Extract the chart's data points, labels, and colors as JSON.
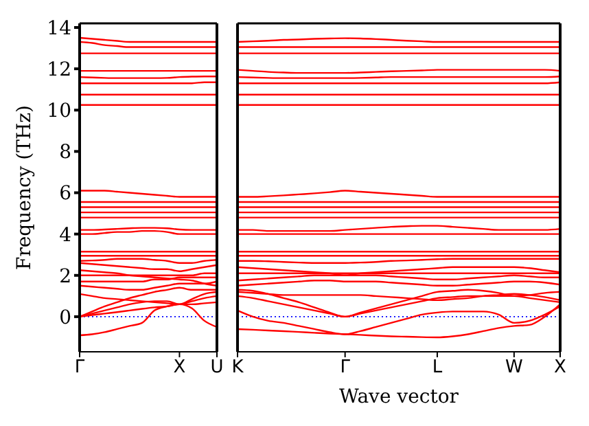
{
  "chart_data": [
    {
      "type": "line",
      "ylabel": "Frequency (THz)",
      "categories": [
        "Γ",
        null,
        null,
        null,
        null,
        null,
        null,
        null,
        "X",
        null,
        null,
        "U"
      ],
      "ylim": [
        -1.7,
        14.2
      ],
      "yticks": [
        0,
        2,
        4,
        6,
        8,
        10,
        12,
        14
      ],
      "ref_lines": [
        {
          "axis": "y",
          "value": 0,
          "color": "#0000ff",
          "line_style": "dotted"
        }
      ],
      "series": [
        {
          "color": "#ff0000",
          "values": [
            -0.9,
            -0.85,
            -0.75,
            -0.6,
            -0.45,
            -0.3,
            0.3,
            0.5,
            0.6,
            0.4,
            -0.2,
            -0.5
          ]
        },
        {
          "color": "#ff0000",
          "values": [
            0,
            0.08,
            0.15,
            0.22,
            0.3,
            0.38,
            0.45,
            0.5,
            0.6,
            0.6,
            0.65,
            0.7
          ]
        },
        {
          "color": "#ff0000",
          "values": [
            0,
            0.15,
            0.3,
            0.45,
            0.6,
            0.7,
            0.75,
            0.75,
            0.6,
            0.75,
            0.9,
            1.0
          ]
        },
        {
          "color": "#ff0000",
          "values": [
            0,
            0.25,
            0.5,
            0.7,
            0.9,
            1.05,
            1.2,
            1.3,
            1.4,
            1.3,
            1.3,
            1.3
          ]
        },
        {
          "color": "#ff0000",
          "values": [
            1.1,
            1.0,
            0.9,
            0.85,
            0.8,
            0.75,
            0.7,
            0.65,
            0.6,
            0.85,
            1.1,
            1.2
          ]
        },
        {
          "color": "#ff0000",
          "values": [
            1.5,
            1.45,
            1.4,
            1.35,
            1.3,
            1.3,
            1.4,
            1.5,
            1.6,
            1.6,
            1.6,
            1.7
          ]
        },
        {
          "color": "#ff0000",
          "values": [
            1.7,
            1.7,
            1.7,
            1.7,
            1.7,
            1.7,
            1.8,
            1.8,
            1.9,
            1.9,
            1.9,
            1.9
          ]
        },
        {
          "color": "#ff0000",
          "values": [
            2.0,
            2.0,
            2.0,
            2.0,
            2.0,
            2.0,
            2.0,
            2.0,
            2.0,
            2.0,
            2.1,
            2.1
          ]
        },
        {
          "color": "#ff0000",
          "values": [
            2.25,
            2.2,
            2.15,
            2.1,
            2.0,
            1.95,
            1.9,
            1.85,
            1.8,
            1.75,
            1.6,
            1.5
          ]
        },
        {
          "color": "#ff0000",
          "values": [
            2.6,
            2.55,
            2.5,
            2.45,
            2.4,
            2.35,
            2.3,
            2.3,
            2.2,
            2.3,
            2.4,
            2.5
          ]
        },
        {
          "color": "#ff0000",
          "values": [
            2.7,
            2.72,
            2.75,
            2.8,
            2.8,
            2.8,
            2.75,
            2.7,
            2.6,
            2.6,
            2.7,
            2.75
          ]
        },
        {
          "color": "#ff0000",
          "values": [
            2.95,
            2.95,
            2.95,
            2.95,
            2.95,
            2.95,
            2.95,
            2.95,
            2.95,
            2.95,
            2.95,
            2.95
          ]
        },
        {
          "color": "#ff0000",
          "values": [
            3.15,
            3.15,
            3.15,
            3.15,
            3.15,
            3.15,
            3.15,
            3.15,
            3.15,
            3.15,
            3.15,
            3.15
          ]
        },
        {
          "color": "#ff0000",
          "values": [
            4.0,
            4.0,
            4.05,
            4.1,
            4.1,
            4.15,
            4.15,
            4.1,
            4.0,
            4.0,
            4.0,
            4.0
          ]
        },
        {
          "color": "#ff0000",
          "values": [
            4.2,
            4.2,
            4.22,
            4.25,
            4.28,
            4.3,
            4.3,
            4.28,
            4.22,
            4.2,
            4.2,
            4.2
          ]
        },
        {
          "color": "#ff0000",
          "values": [
            4.8,
            4.8,
            4.8,
            4.8,
            4.8,
            4.8,
            4.8,
            4.8,
            4.8,
            4.8,
            4.8,
            4.8
          ]
        },
        {
          "color": "#ff0000",
          "values": [
            5.05,
            5.05,
            5.05,
            5.05,
            5.05,
            5.05,
            5.05,
            5.05,
            5.05,
            5.05,
            5.05,
            5.05
          ]
        },
        {
          "color": "#ff0000",
          "values": [
            5.3,
            5.3,
            5.3,
            5.3,
            5.3,
            5.3,
            5.3,
            5.3,
            5.3,
            5.3,
            5.3,
            5.3
          ]
        },
        {
          "color": "#ff0000",
          "values": [
            5.55,
            5.55,
            5.55,
            5.55,
            5.55,
            5.55,
            5.55,
            5.55,
            5.55,
            5.55,
            5.55,
            5.55
          ]
        },
        {
          "color": "#ff0000",
          "values": [
            6.1,
            6.1,
            6.1,
            6.05,
            6.0,
            5.95,
            5.9,
            5.85,
            5.8,
            5.8,
            5.8,
            5.8
          ]
        },
        {
          "color": "#ff0000",
          "values": [
            10.25,
            10.25,
            10.25,
            10.25,
            10.25,
            10.25,
            10.25,
            10.25,
            10.25,
            10.25,
            10.25,
            10.25
          ]
        },
        {
          "color": "#ff0000",
          "values": [
            10.75,
            10.75,
            10.75,
            10.75,
            10.75,
            10.75,
            10.75,
            10.75,
            10.75,
            10.75,
            10.75,
            10.75
          ]
        },
        {
          "color": "#ff0000",
          "values": [
            11.3,
            11.3,
            11.3,
            11.3,
            11.3,
            11.3,
            11.3,
            11.3,
            11.3,
            11.3,
            11.35,
            11.35
          ]
        },
        {
          "color": "#ff0000",
          "values": [
            11.6,
            11.58,
            11.56,
            11.55,
            11.55,
            11.55,
            11.55,
            11.56,
            11.6,
            11.62,
            11.63,
            11.63
          ]
        },
        {
          "color": "#ff0000",
          "values": [
            11.9,
            11.9,
            11.9,
            11.9,
            11.9,
            11.9,
            11.9,
            11.9,
            11.9,
            11.9,
            11.9,
            11.9
          ]
        },
        {
          "color": "#ff0000",
          "values": [
            12.75,
            12.75,
            12.75,
            12.75,
            12.75,
            12.75,
            12.75,
            12.75,
            12.75,
            12.75,
            12.75,
            12.75
          ]
        },
        {
          "color": "#ff0000",
          "values": [
            13.5,
            13.45,
            13.4,
            13.35,
            13.3,
            13.3,
            13.3,
            13.3,
            13.3,
            13.3,
            13.3,
            13.3
          ]
        },
        {
          "color": "#ff0000",
          "values": [
            13.3,
            13.25,
            13.15,
            13.1,
            13.05,
            13.05,
            13.05,
            13.05,
            13.05,
            13.05,
            13.05,
            13.05
          ]
        }
      ]
    },
    {
      "type": "line",
      "xlabel": "Wave vector",
      "tick_labels": "x",
      "categories": [
        "K",
        null,
        null,
        null,
        null,
        null,
        null,
        "Γ",
        null,
        null,
        null,
        null,
        null,
        "L",
        null,
        null,
        null,
        null,
        "W",
        null,
        null,
        "X"
      ],
      "ylim": [
        -1.7,
        14.2
      ],
      "yticks": [
        0,
        2,
        4,
        6,
        8,
        10,
        12,
        14
      ],
      "ref_lines": [
        {
          "axis": "y",
          "value": 0,
          "color": "#0000ff",
          "line_style": "dotted"
        }
      ],
      "series": [
        {
          "color": "#ff0000",
          "values": [
            -0.6,
            -0.63,
            -0.67,
            -0.7,
            -0.74,
            -0.78,
            -0.82,
            -0.85,
            -0.88,
            -0.92,
            -0.95,
            -0.97,
            -0.99,
            -1.0,
            -0.95,
            -0.85,
            -0.7,
            -0.55,
            -0.45,
            -0.4,
            0.0,
            0.6
          ]
        },
        {
          "color": "#ff0000",
          "values": [
            0.3,
            0.0,
            -0.2,
            -0.3,
            -0.45,
            -0.6,
            -0.75,
            -0.85,
            -0.7,
            -0.5,
            -0.3,
            -0.1,
            0.1,
            0.2,
            0.25,
            0.25,
            0.25,
            0.1,
            -0.3,
            -0.2,
            0.1,
            0.5
          ]
        },
        {
          "color": "#ff0000",
          "values": [
            1.2,
            1.15,
            1.1,
            1.05,
            1.05,
            1.05,
            1.05,
            1.05,
            1.05,
            1.0,
            0.95,
            0.9,
            0.85,
            0.8,
            0.85,
            0.9,
            1.0,
            1.05,
            1.1,
            1.05,
            0.95,
            0.8
          ]
        },
        {
          "color": "#ff0000",
          "values": [
            1.0,
            0.9,
            0.75,
            0.6,
            0.45,
            0.3,
            0.15,
            0,
            0.15,
            0.3,
            0.45,
            0.6,
            0.75,
            0.9,
            0.95,
            1.0,
            1.0,
            1.0,
            1.0,
            0.9,
            0.8,
            0.7
          ]
        },
        {
          "color": "#ff0000",
          "values": [
            1.3,
            1.25,
            1.1,
            0.9,
            0.7,
            0.45,
            0.2,
            0,
            0.2,
            0.4,
            0.6,
            0.8,
            1.0,
            1.2,
            1.25,
            1.3,
            1.25,
            1.15,
            1.0,
            1.05,
            1.15,
            1.2
          ]
        },
        {
          "color": "#ff0000",
          "values": [
            1.5,
            1.55,
            1.6,
            1.65,
            1.7,
            1.75,
            1.75,
            1.7,
            1.7,
            1.7,
            1.65,
            1.6,
            1.55,
            1.5,
            1.5,
            1.55,
            1.6,
            1.65,
            1.7,
            1.7,
            1.65,
            1.55
          ]
        },
        {
          "color": "#ff0000",
          "values": [
            1.75,
            1.8,
            1.85,
            1.9,
            1.95,
            2.0,
            2.0,
            2.0,
            2.0,
            2.0,
            1.95,
            1.9,
            1.85,
            1.8,
            1.8,
            1.85,
            1.9,
            1.95,
            2.0,
            1.95,
            1.9,
            1.9
          ]
        },
        {
          "color": "#ff0000",
          "values": [
            2.1,
            2.1,
            2.1,
            2.1,
            2.1,
            2.1,
            2.1,
            2.1,
            2.1,
            2.1,
            2.1,
            2.1,
            2.1,
            2.1,
            2.1,
            2.1,
            2.1,
            2.1,
            2.1,
            2.1,
            2.1,
            2.1
          ]
        },
        {
          "color": "#ff0000",
          "values": [
            2.4,
            2.35,
            2.3,
            2.25,
            2.2,
            2.15,
            2.1,
            2.0,
            2.1,
            2.15,
            2.2,
            2.25,
            2.3,
            2.35,
            2.4,
            2.4,
            2.4,
            2.4,
            2.4,
            2.35,
            2.25,
            2.15
          ]
        },
        {
          "color": "#ff0000",
          "values": [
            2.7,
            2.7,
            2.68,
            2.65,
            2.62,
            2.6,
            2.6,
            2.6,
            2.62,
            2.65,
            2.7,
            2.72,
            2.75,
            2.78,
            2.8,
            2.8,
            2.8,
            2.8,
            2.8,
            2.8,
            2.8,
            2.8
          ]
        },
        {
          "color": "#ff0000",
          "values": [
            2.95,
            2.95,
            2.95,
            2.95,
            2.95,
            2.95,
            2.95,
            2.95,
            2.95,
            2.95,
            2.95,
            2.95,
            2.95,
            2.95,
            2.95,
            2.95,
            2.95,
            2.95,
            2.95,
            2.95,
            2.95,
            2.95
          ]
        },
        {
          "color": "#ff0000",
          "values": [
            3.15,
            3.15,
            3.15,
            3.15,
            3.15,
            3.15,
            3.15,
            3.15,
            3.15,
            3.15,
            3.15,
            3.15,
            3.15,
            3.15,
            3.15,
            3.15,
            3.15,
            3.15,
            3.15,
            3.15,
            3.15,
            3.15
          ]
        },
        {
          "color": "#ff0000",
          "values": [
            4.0,
            4.0,
            4.0,
            4.0,
            4.0,
            4.0,
            4.0,
            4.0,
            4.0,
            4.0,
            4.0,
            4.0,
            4.0,
            4.0,
            4.0,
            4.0,
            4.0,
            4.0,
            4.0,
            4.0,
            4.0,
            4.0
          ]
        },
        {
          "color": "#ff0000",
          "values": [
            4.2,
            4.2,
            4.15,
            4.15,
            4.15,
            4.15,
            4.15,
            4.2,
            4.25,
            4.3,
            4.35,
            4.38,
            4.4,
            4.4,
            4.35,
            4.3,
            4.25,
            4.2,
            4.2,
            4.2,
            4.2,
            4.25
          ]
        },
        {
          "color": "#ff0000",
          "values": [
            4.8,
            4.8,
            4.8,
            4.8,
            4.8,
            4.8,
            4.8,
            4.8,
            4.8,
            4.8,
            4.8,
            4.8,
            4.8,
            4.8,
            4.8,
            4.8,
            4.8,
            4.8,
            4.8,
            4.8,
            4.8,
            4.8
          ]
        },
        {
          "color": "#ff0000",
          "values": [
            5.05,
            5.05,
            5.05,
            5.05,
            5.05,
            5.05,
            5.05,
            5.05,
            5.05,
            5.05,
            5.05,
            5.05,
            5.05,
            5.05,
            5.05,
            5.05,
            5.05,
            5.05,
            5.05,
            5.05,
            5.05,
            5.05
          ]
        },
        {
          "color": "#ff0000",
          "values": [
            5.3,
            5.3,
            5.3,
            5.3,
            5.3,
            5.3,
            5.3,
            5.3,
            5.3,
            5.3,
            5.3,
            5.3,
            5.3,
            5.3,
            5.3,
            5.3,
            5.3,
            5.3,
            5.3,
            5.3,
            5.3,
            5.3
          ]
        },
        {
          "color": "#ff0000",
          "values": [
            5.55,
            5.55,
            5.55,
            5.55,
            5.55,
            5.55,
            5.55,
            5.55,
            5.55,
            5.55,
            5.55,
            5.55,
            5.55,
            5.55,
            5.55,
            5.55,
            5.55,
            5.55,
            5.55,
            5.55,
            5.55,
            5.55
          ]
        },
        {
          "color": "#ff0000",
          "values": [
            5.8,
            5.8,
            5.83,
            5.87,
            5.92,
            5.97,
            6.03,
            6.1,
            6.05,
            6.0,
            5.95,
            5.9,
            5.85,
            5.8,
            5.8,
            5.8,
            5.8,
            5.8,
            5.8,
            5.8,
            5.8,
            5.8
          ]
        },
        {
          "color": "#ff0000",
          "values": [
            10.25,
            10.25,
            10.25,
            10.25,
            10.25,
            10.25,
            10.25,
            10.25,
            10.25,
            10.25,
            10.25,
            10.25,
            10.25,
            10.25,
            10.25,
            10.25,
            10.25,
            10.25,
            10.25,
            10.25,
            10.25,
            10.25
          ]
        },
        {
          "color": "#ff0000",
          "values": [
            10.75,
            10.75,
            10.75,
            10.75,
            10.75,
            10.75,
            10.75,
            10.75,
            10.75,
            10.75,
            10.75,
            10.75,
            10.75,
            10.75,
            10.75,
            10.75,
            10.75,
            10.75,
            10.75,
            10.75,
            10.75,
            10.75
          ]
        },
        {
          "color": "#ff0000",
          "values": [
            11.3,
            11.3,
            11.3,
            11.3,
            11.3,
            11.3,
            11.3,
            11.3,
            11.3,
            11.3,
            11.3,
            11.3,
            11.3,
            11.3,
            11.3,
            11.3,
            11.3,
            11.3,
            11.3,
            11.3,
            11.3,
            11.35
          ]
        },
        {
          "color": "#ff0000",
          "values": [
            11.6,
            11.58,
            11.56,
            11.55,
            11.55,
            11.55,
            11.55,
            11.55,
            11.56,
            11.58,
            11.6,
            11.6,
            11.6,
            11.6,
            11.6,
            11.6,
            11.6,
            11.6,
            11.6,
            11.6,
            11.6,
            11.63
          ]
        },
        {
          "color": "#ff0000",
          "values": [
            11.95,
            11.9,
            11.85,
            11.82,
            11.8,
            11.8,
            11.8,
            11.8,
            11.82,
            11.85,
            11.88,
            11.9,
            11.92,
            11.95,
            11.95,
            11.95,
            11.95,
            11.95,
            11.95,
            11.95,
            11.95,
            11.9
          ]
        },
        {
          "color": "#ff0000",
          "values": [
            12.75,
            12.75,
            12.75,
            12.75,
            12.75,
            12.75,
            12.75,
            12.75,
            12.75,
            12.75,
            12.75,
            12.75,
            12.75,
            12.75,
            12.75,
            12.75,
            12.75,
            12.75,
            12.75,
            12.75,
            12.75,
            12.75
          ]
        },
        {
          "color": "#ff0000",
          "values": [
            13.05,
            13.05,
            13.05,
            13.05,
            13.05,
            13.05,
            13.05,
            13.05,
            13.05,
            13.05,
            13.05,
            13.05,
            13.05,
            13.05,
            13.05,
            13.05,
            13.05,
            13.05,
            13.05,
            13.05,
            13.05,
            13.05
          ]
        },
        {
          "color": "#ff0000",
          "values": [
            13.3,
            13.33,
            13.36,
            13.4,
            13.42,
            13.45,
            13.47,
            13.48,
            13.47,
            13.44,
            13.4,
            13.36,
            13.33,
            13.3,
            13.3,
            13.3,
            13.3,
            13.3,
            13.3,
            13.3,
            13.3,
            13.3
          ]
        }
      ]
    }
  ]
}
